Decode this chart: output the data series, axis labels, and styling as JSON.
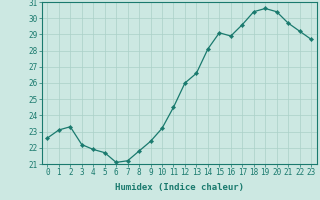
{
  "x": [
    0,
    1,
    2,
    3,
    4,
    5,
    6,
    7,
    8,
    9,
    10,
    11,
    12,
    13,
    14,
    15,
    16,
    17,
    18,
    19,
    20,
    21,
    22,
    23
  ],
  "y": [
    22.6,
    23.1,
    23.3,
    22.2,
    21.9,
    21.7,
    21.1,
    21.2,
    21.8,
    22.4,
    23.2,
    24.5,
    26.0,
    26.6,
    28.1,
    29.1,
    28.9,
    29.6,
    30.4,
    30.6,
    30.4,
    29.7,
    29.2,
    28.7
  ],
  "line_color": "#1a7a6e",
  "marker": "D",
  "marker_size": 2.2,
  "linewidth": 0.9,
  "bg_color": "#cce8e2",
  "grid_color": "#aad0c8",
  "xlabel": "Humidex (Indice chaleur)",
  "ylabel": "",
  "ylim": [
    21,
    31
  ],
  "xlim": [
    -0.5,
    23.5
  ],
  "yticks": [
    21,
    22,
    23,
    24,
    25,
    26,
    27,
    28,
    29,
    30,
    31
  ],
  "xticks": [
    0,
    1,
    2,
    3,
    4,
    5,
    6,
    7,
    8,
    9,
    10,
    11,
    12,
    13,
    14,
    15,
    16,
    17,
    18,
    19,
    20,
    21,
    22,
    23
  ],
  "xlabel_fontsize": 6.5,
  "tick_fontsize": 5.5,
  "axis_color": "#1a7a6e"
}
